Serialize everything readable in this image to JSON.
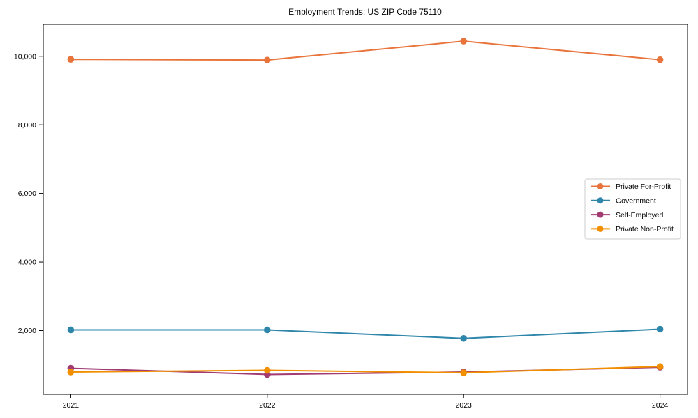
{
  "chart_data": {
    "type": "line",
    "title": "Employment Trends: US ZIP Code 75110",
    "xlabel": "",
    "ylabel": "",
    "x_categories": [
      "2021",
      "2022",
      "2023",
      "2024"
    ],
    "x_values": [
      2021,
      2022,
      2023,
      2024
    ],
    "series": [
      {
        "name": "Private For-Profit",
        "color": "#E8743B",
        "marker": "circle",
        "values": [
          9910,
          9890,
          10440,
          9900
        ]
      },
      {
        "name": "Government",
        "color": "#2E86AB",
        "marker": "circle",
        "values": [
          2020,
          2020,
          1770,
          2040
        ]
      },
      {
        "name": "Self-Employed",
        "color": "#A23B72",
        "marker": "circle",
        "values": [
          900,
          720,
          790,
          930
        ]
      },
      {
        "name": "Private Non-Profit",
        "color": "#F18F01",
        "marker": "circle",
        "values": [
          790,
          840,
          770,
          950
        ]
      }
    ],
    "yticks": {
      "values": [
        2000,
        4000,
        6000,
        8000,
        10000
      ],
      "labels": [
        "2,000",
        "4,000",
        "6,000",
        "8,000",
        "10,000"
      ]
    },
    "ylim": [
      140,
      10930
    ],
    "xlim": [
      2020.86,
      2024.14
    ],
    "grid": false,
    "legend": {
      "position": "center-right",
      "background": "#ffffff",
      "border_color": "#cccccc",
      "labels": [
        "Private For-Profit",
        "Government",
        "Self-Employed",
        "Private Non-Profit"
      ]
    },
    "axes": {
      "spine_color": "#000000",
      "tick_color": "#000000",
      "text_color": "#000000"
    }
  }
}
